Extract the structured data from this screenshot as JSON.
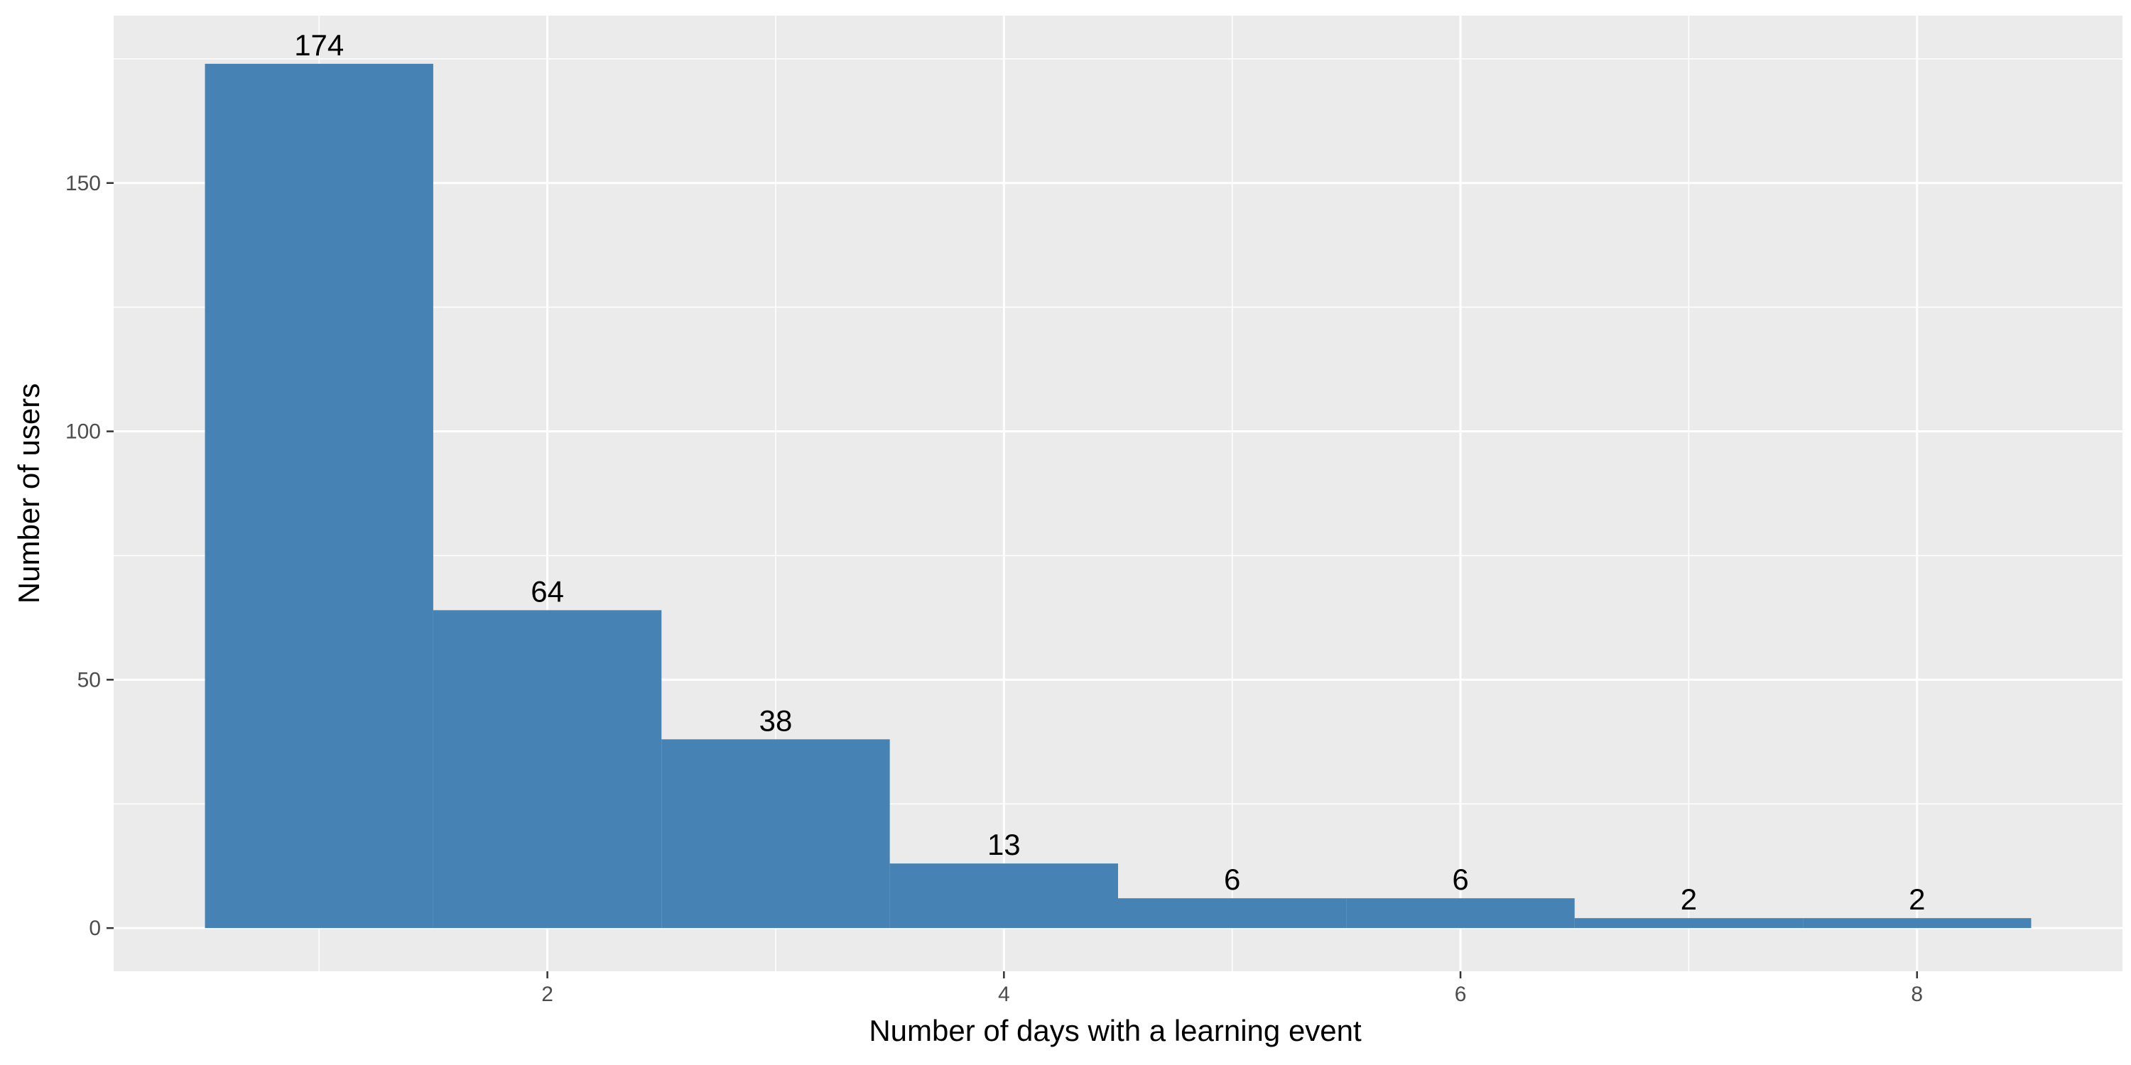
{
  "chart_data": {
    "type": "bar",
    "title": "",
    "xlabel": "Number of days with a learning event",
    "ylabel": "Number of users",
    "categories": [
      1,
      2,
      3,
      4,
      5,
      6,
      7,
      8
    ],
    "values": [
      174,
      64,
      38,
      13,
      6,
      6,
      2,
      2
    ],
    "data_labels": [
      "174",
      "64",
      "38",
      "13",
      "6",
      "6",
      "2",
      "2"
    ],
    "x_ticks": [
      2,
      4,
      6,
      8
    ],
    "x_tick_labels": [
      "2",
      "4",
      "6",
      "8"
    ],
    "y_ticks": [
      0,
      50,
      100,
      150
    ],
    "y_tick_labels": [
      "0",
      "50",
      "100",
      "150"
    ],
    "xlim": [
      0.1,
      8.9
    ],
    "ylim": [
      -8.7,
      183.7
    ],
    "grid": true,
    "bar_color": "#4682B4",
    "panel_color": "#EBEBEB",
    "grid_color": "#FFFFFF"
  }
}
